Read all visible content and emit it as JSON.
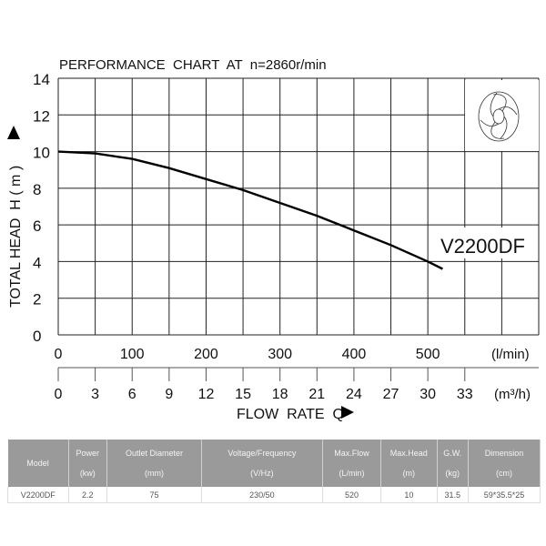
{
  "chart_data": {
    "type": "line",
    "title": "PERFORMANCE  CHART  AT  n=2860r/min",
    "ylabel": "TOTAL HEAD  H ( m )",
    "xlabel": "FLOW  RATE  Q",
    "xunit_primary": "(l/min)",
    "xunit_secondary": "(m³/h)",
    "ylim": [
      0,
      14
    ],
    "xlim": [
      0,
      650
    ],
    "yticks": [
      "0",
      "2",
      "4",
      "6",
      "8",
      "10",
      "12",
      "14"
    ],
    "xticks_lmin": [
      "0",
      "100",
      "200",
      "300",
      "400",
      "500"
    ],
    "xticks_m3h": [
      "0",
      "3",
      "6",
      "9",
      "12",
      "15",
      "18",
      "21",
      "24",
      "27",
      "30",
      "33"
    ],
    "grid": true,
    "series": [
      {
        "name": "V2200DF",
        "x": [
          0,
          50,
          100,
          150,
          200,
          250,
          300,
          350,
          400,
          450,
          500,
          520
        ],
        "y": [
          10,
          9.9,
          9.6,
          9.1,
          8.5,
          7.9,
          7.2,
          6.5,
          5.7,
          4.9,
          4.0,
          3.6
        ]
      }
    ]
  },
  "table": {
    "headers": [
      [
        "Model",
        ""
      ],
      [
        "Power",
        "(kw)"
      ],
      [
        "Outlet Diameter",
        "(mm)"
      ],
      [
        "Voltage/Frequency",
        "(V/Hz)"
      ],
      [
        "Max.Flow",
        "(L/min)"
      ],
      [
        "Max.Head",
        "(m)"
      ],
      [
        "G.W.",
        "(kg)"
      ],
      [
        "Dimension",
        "(cm)"
      ]
    ],
    "rows": [
      [
        "V2200DF",
        "2.2",
        "75",
        "230/50",
        "520",
        "10",
        "31.5",
        "59*35.5*25"
      ]
    ]
  }
}
